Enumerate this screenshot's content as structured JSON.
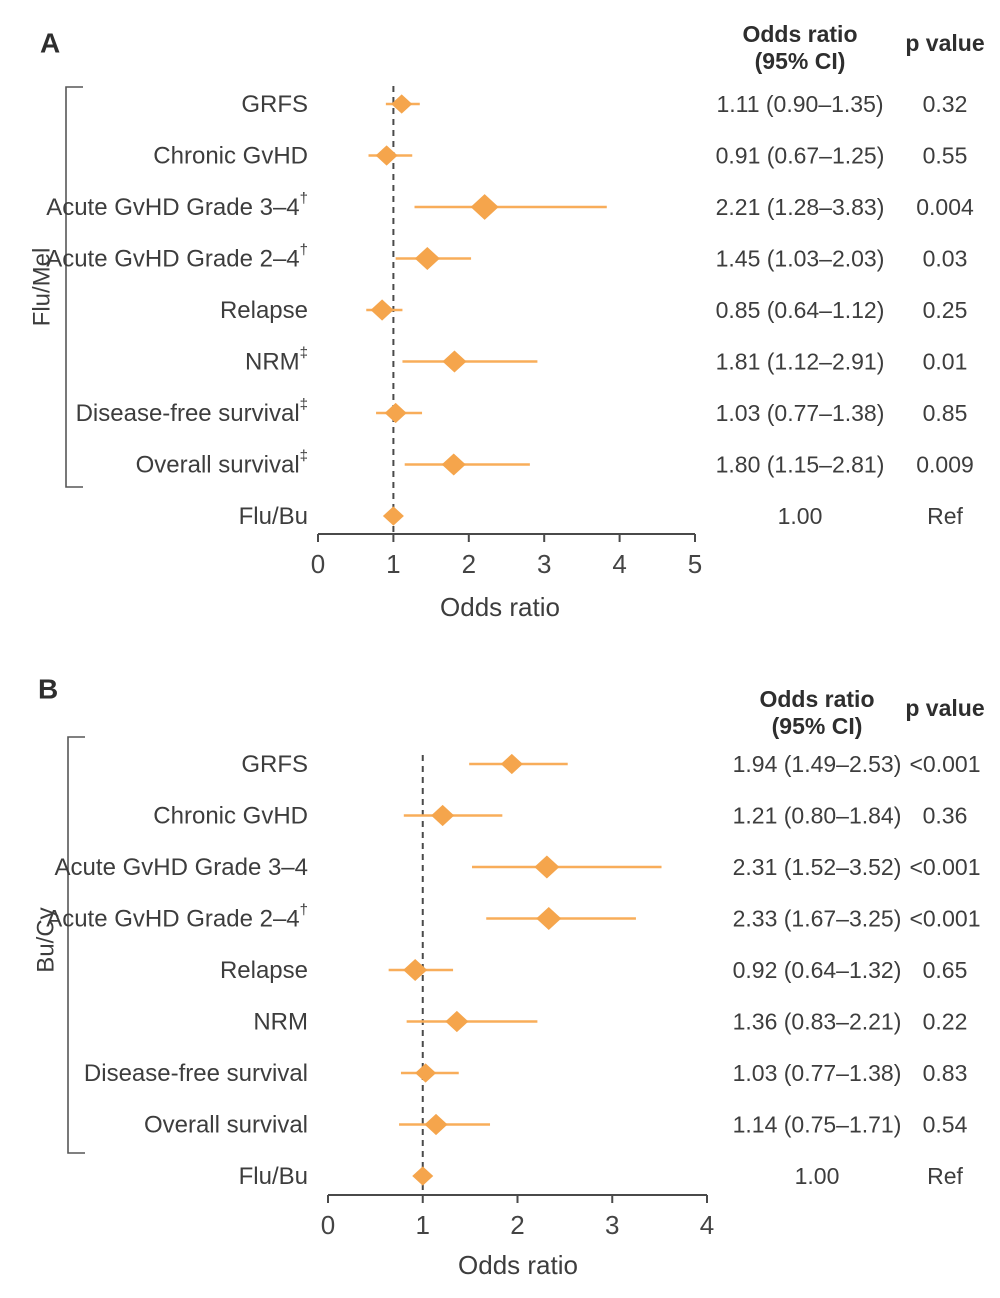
{
  "colors": {
    "marker": "#F5A54C",
    "ci_line": "#F8AD5A",
    "text": "#3D3D3D",
    "axis": "#4A4A4A"
  },
  "chart_data": [
    {
      "type": "scatter",
      "variant": "forest-plot",
      "panel_label": "A",
      "group_label": "Flu/Mel",
      "xlabel": "Odds ratio",
      "xlim": [
        0,
        5
      ],
      "xticks": [
        0,
        1,
        2,
        3,
        4,
        5
      ],
      "reference_line_x": 1,
      "column_headers": {
        "or_line1": "Odds ratio",
        "or_line2": "(95% CI)",
        "p": "p value"
      },
      "rows": [
        {
          "label": "GRFS",
          "sup": "",
          "or": 1.11,
          "ci_low": 0.9,
          "ci_high": 1.35,
          "or_ci_text": "1.11 (0.90–1.35)",
          "p_text": "0.32",
          "in_bracket": true,
          "marker_size": 21
        },
        {
          "label": "Chronic GvHD",
          "sup": "",
          "or": 0.91,
          "ci_low": 0.67,
          "ci_high": 1.25,
          "or_ci_text": "0.91 (0.67–1.25)",
          "p_text": "0.55",
          "in_bracket": true,
          "marker_size": 22
        },
        {
          "label": "Acute GvHD Grade 3–4",
          "sup": "†",
          "or": 2.21,
          "ci_low": 1.28,
          "ci_high": 3.83,
          "or_ci_text": "2.21 (1.28–3.83)",
          "p_text": "0.004",
          "in_bracket": true,
          "marker_size": 28
        },
        {
          "label": "Acute GvHD Grade 2–4",
          "sup": "†",
          "or": 1.45,
          "ci_low": 1.03,
          "ci_high": 2.03,
          "or_ci_text": "1.45 (1.03–2.03)",
          "p_text": "0.03",
          "in_bracket": true,
          "marker_size": 25
        },
        {
          "label": "Relapse",
          "sup": "",
          "or": 0.85,
          "ci_low": 0.64,
          "ci_high": 1.12,
          "or_ci_text": "0.85 (0.64–1.12)",
          "p_text": "0.25",
          "in_bracket": true,
          "marker_size": 23
        },
        {
          "label": "NRM",
          "sup": "‡",
          "or": 1.81,
          "ci_low": 1.12,
          "ci_high": 2.91,
          "or_ci_text": "1.81 (1.12–2.91)",
          "p_text": "0.01",
          "in_bracket": true,
          "marker_size": 24
        },
        {
          "label": "Disease-free survival",
          "sup": "‡",
          "or": 1.03,
          "ci_low": 0.77,
          "ci_high": 1.38,
          "or_ci_text": "1.03 (0.77–1.38)",
          "p_text": "0.85",
          "in_bracket": true,
          "marker_size": 22
        },
        {
          "label": "Overall survival",
          "sup": "‡",
          "or": 1.8,
          "ci_low": 1.15,
          "ci_high": 2.81,
          "or_ci_text": "1.80 (1.15–2.81)",
          "p_text": "0.009",
          "in_bracket": true,
          "marker_size": 24
        },
        {
          "label": "Flu/Bu",
          "sup": "",
          "or": 1.0,
          "ci_low": null,
          "ci_high": null,
          "or_ci_text": "1.00",
          "p_text": "Ref",
          "in_bracket": false,
          "marker_size": 21
        }
      ]
    },
    {
      "type": "scatter",
      "variant": "forest-plot",
      "panel_label": "B",
      "group_label": "Bu/Cy",
      "xlabel": "Odds ratio",
      "xlim": [
        0,
        4
      ],
      "xticks": [
        0,
        1,
        2,
        3,
        4
      ],
      "reference_line_x": 1,
      "column_headers": {
        "or_line1": "Odds ratio",
        "or_line2": "(95% CI)",
        "p": "p value"
      },
      "rows": [
        {
          "label": "GRFS",
          "sup": "",
          "or": 1.94,
          "ci_low": 1.49,
          "ci_high": 2.53,
          "or_ci_text": "1.94 (1.49–2.53)",
          "p_text": "<0.001",
          "in_bracket": true,
          "marker_size": 22
        },
        {
          "label": "Chronic GvHD",
          "sup": "",
          "or": 1.21,
          "ci_low": 0.8,
          "ci_high": 1.84,
          "or_ci_text": "1.21 (0.80–1.84)",
          "p_text": "0.36",
          "in_bracket": true,
          "marker_size": 23
        },
        {
          "label": "Acute GvHD Grade 3–4",
          "sup": "",
          "or": 2.31,
          "ci_low": 1.52,
          "ci_high": 3.52,
          "or_ci_text": "2.31 (1.52–3.52)",
          "p_text": "<0.001",
          "in_bracket": true,
          "marker_size": 25
        },
        {
          "label": "Acute GvHD Grade 2–4",
          "sup": "†",
          "or": 2.33,
          "ci_low": 1.67,
          "ci_high": 3.25,
          "or_ci_text": "2.33 (1.67–3.25)",
          "p_text": "<0.001",
          "in_bracket": true,
          "marker_size": 25
        },
        {
          "label": "Relapse",
          "sup": "",
          "or": 0.92,
          "ci_low": 0.64,
          "ci_high": 1.32,
          "or_ci_text": "0.92 (0.64–1.32)",
          "p_text": "0.65",
          "in_bracket": true,
          "marker_size": 24
        },
        {
          "label": "NRM",
          "sup": "",
          "or": 1.36,
          "ci_low": 0.83,
          "ci_high": 2.21,
          "or_ci_text": "1.36 (0.83–2.21)",
          "p_text": "0.22",
          "in_bracket": true,
          "marker_size": 23
        },
        {
          "label": "Disease-free survival",
          "sup": "",
          "or": 1.03,
          "ci_low": 0.77,
          "ci_high": 1.38,
          "or_ci_text": "1.03 (0.77–1.38)",
          "p_text": "0.83",
          "in_bracket": true,
          "marker_size": 21
        },
        {
          "label": "Overall survival",
          "sup": "",
          "or": 1.14,
          "ci_low": 0.75,
          "ci_high": 1.71,
          "or_ci_text": "1.14 (0.75–1.71)",
          "p_text": "0.54",
          "in_bracket": true,
          "marker_size": 23
        },
        {
          "label": "Flu/Bu",
          "sup": "",
          "or": 1.0,
          "ci_low": null,
          "ci_high": null,
          "or_ci_text": "1.00",
          "p_text": "Ref",
          "in_bracket": false,
          "marker_size": 21
        }
      ]
    }
  ]
}
